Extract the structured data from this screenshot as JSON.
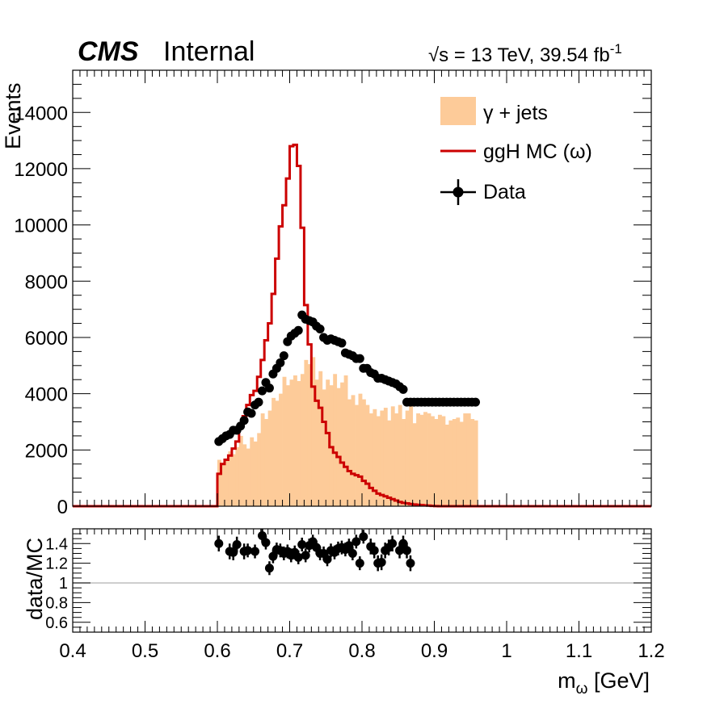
{
  "header": {
    "experiment": "CMS",
    "status": "Internal",
    "energy_lumi": "s = 13 TeV, 39.54 fb",
    "sqrt_symbol": "√",
    "lumi_exponent": "-1"
  },
  "chart_data": [
    {
      "type": "bar",
      "panel": "main",
      "ylabel": "Events",
      "xlim": [
        0.4,
        1.2
      ],
      "ylim": [
        0,
        15500
      ],
      "yticks": [
        "0",
        "2000",
        "4000",
        "6000",
        "8000",
        "10000",
        "12000",
        "14000"
      ],
      "ytick_values": [
        0,
        2000,
        4000,
        6000,
        8000,
        10000,
        12000,
        14000
      ],
      "bin_edges_start": 0.6,
      "bin_width": 0.005,
      "legend_position": "top-right",
      "series": [
        {
          "name": "γ + jets",
          "style": "filled-histogram",
          "color": "#fdcb99",
          "values": [
            1650,
            1550,
            1700,
            1950,
            1850,
            2100,
            2500,
            2200,
            2050,
            2450,
            2300,
            2600,
            3300,
            3100,
            3400,
            3850,
            3750,
            4000,
            4600,
            4300,
            4500,
            4650,
            4450,
            4700,
            5200,
            5050,
            5300,
            4500,
            4800,
            4150,
            4500,
            4300,
            4700,
            4200,
            4400,
            4650,
            3800,
            3950,
            3600,
            4000,
            3800,
            3600,
            3300,
            3450,
            3200,
            3400,
            3500,
            3050,
            3550,
            3300,
            3600,
            3100,
            3400,
            3600,
            2950,
            3300,
            3250,
            3350,
            3300,
            3200,
            3100,
            3250,
            3200,
            2900,
            3050,
            3100,
            3150,
            3000,
            3300,
            3300,
            3100,
            3050
          ]
        },
        {
          "name": "ggH MC (ω)",
          "style": "step-line",
          "color": "#cc0000",
          "values": [
            1150,
            1500,
            1650,
            1800,
            2050,
            2300,
            2900,
            3200,
            3600,
            3950,
            4100,
            4600,
            5200,
            5900,
            6500,
            7550,
            8800,
            9950,
            10700,
            11650,
            12800,
            12850,
            12100,
            9900,
            7150,
            5750,
            4250,
            3750,
            3500,
            3000,
            2600,
            2100,
            1900,
            1750,
            1550,
            1400,
            1250,
            1150,
            1100,
            1050,
            900,
            800,
            650,
            550,
            450,
            400,
            350,
            300,
            250,
            200,
            150,
            120,
            100,
            80,
            60,
            50,
            40,
            30,
            20,
            10,
            5,
            0,
            0,
            0,
            0,
            0,
            0,
            0,
            0,
            0,
            0,
            0
          ]
        },
        {
          "name": "Data",
          "style": "points",
          "color": "#000000",
          "x": [
            0.602,
            0.607,
            0.612,
            0.617,
            0.622,
            0.627,
            0.632,
            0.637,
            0.642,
            0.647,
            0.652,
            0.657,
            0.662,
            0.667,
            0.672,
            0.677,
            0.682,
            0.687,
            0.692,
            0.697,
            0.702,
            0.707,
            0.712,
            0.717,
            0.722,
            0.727,
            0.732,
            0.737,
            0.742,
            0.747,
            0.752,
            0.757,
            0.762,
            0.767,
            0.772,
            0.777,
            0.782,
            0.787,
            0.792,
            0.797,
            0.802,
            0.807,
            0.812,
            0.817,
            0.822,
            0.827,
            0.832,
            0.837,
            0.842,
            0.847,
            0.852,
            0.857,
            0.862,
            0.867,
            0.872,
            0.877,
            0.882,
            0.887,
            0.892,
            0.897,
            0.902,
            0.907,
            0.912,
            0.917,
            0.922,
            0.927,
            0.932,
            0.937,
            0.942,
            0.947,
            0.952,
            0.957
          ],
          "values": [
            2300,
            2400,
            2500,
            2550,
            2700,
            2700,
            2850,
            3050,
            3350,
            3300,
            3600,
            3700,
            4100,
            4400,
            4200,
            4700,
            4900,
            5100,
            5350,
            5850,
            6050,
            6150,
            6250,
            6800,
            6650,
            6600,
            6550,
            6400,
            6300,
            6000,
            5900,
            5950,
            5900,
            5850,
            5800,
            5450,
            5400,
            5350,
            5250,
            5250,
            4900,
            4900,
            4750,
            4700,
            4550,
            4550,
            4500,
            4450,
            4400,
            4350,
            4250,
            4150,
            3700,
            3700,
            3700,
            3700,
            3700,
            3700,
            3700,
            3700,
            3700,
            3700,
            3700,
            3700,
            3700,
            3700,
            3700,
            3700,
            3700,
            3700,
            3700,
            3700
          ]
        }
      ]
    },
    {
      "type": "scatter",
      "panel": "ratio",
      "ylabel": "data/MC",
      "xlabel": "m",
      "xlabel_sub": "ω",
      "xlabel_unit": " [GeV]",
      "xlim": [
        0.4,
        1.2
      ],
      "ylim": [
        0.5,
        1.55
      ],
      "xticks": [
        "0.4",
        "0.5",
        "0.6",
        "0.7",
        "0.8",
        "0.9",
        "1",
        "1.1",
        "1.2"
      ],
      "xtick_values": [
        0.4,
        0.5,
        0.6,
        0.7,
        0.8,
        0.9,
        1.0,
        1.1,
        1.2
      ],
      "yticks": [
        "0.6",
        "0.8",
        "1",
        "1.2",
        "1.4"
      ],
      "ytick_values": [
        0.6,
        0.8,
        1.0,
        1.2,
        1.4
      ],
      "reference_line": 1.0,
      "points": {
        "x": [
          0.602,
          0.617,
          0.622,
          0.627,
          0.637,
          0.642,
          0.652,
          0.662,
          0.667,
          0.672,
          0.677,
          0.682,
          0.687,
          0.692,
          0.697,
          0.702,
          0.707,
          0.712,
          0.717,
          0.722,
          0.727,
          0.732,
          0.737,
          0.742,
          0.747,
          0.752,
          0.757,
          0.762,
          0.767,
          0.772,
          0.777,
          0.782,
          0.787,
          0.792,
          0.797,
          0.802,
          0.812,
          0.817,
          0.822,
          0.827,
          0.832,
          0.837,
          0.842,
          0.852,
          0.857,
          0.862,
          0.867
        ],
        "values": [
          1.4,
          1.32,
          1.31,
          1.39,
          1.32,
          1.33,
          1.32,
          1.48,
          1.41,
          1.15,
          1.27,
          1.34,
          1.33,
          1.3,
          1.32,
          1.28,
          1.31,
          1.26,
          1.39,
          1.28,
          1.38,
          1.42,
          1.36,
          1.3,
          1.3,
          1.24,
          1.33,
          1.31,
          1.35,
          1.36,
          1.34,
          1.38,
          1.3,
          1.42,
          1.2,
          1.47,
          1.37,
          1.33,
          1.2,
          1.21,
          1.33,
          1.36,
          1.4,
          1.33,
          1.4,
          1.33,
          1.2
        ],
        "errors": [
          0.08,
          0.08,
          0.08,
          0.08,
          0.08,
          0.07,
          0.07,
          0.07,
          0.07,
          0.07,
          0.07,
          0.07,
          0.07,
          0.07,
          0.07,
          0.07,
          0.07,
          0.07,
          0.07,
          0.07,
          0.07,
          0.07,
          0.07,
          0.07,
          0.07,
          0.07,
          0.07,
          0.07,
          0.07,
          0.07,
          0.07,
          0.07,
          0.07,
          0.07,
          0.07,
          0.07,
          0.08,
          0.08,
          0.08,
          0.08,
          0.08,
          0.08,
          0.08,
          0.08,
          0.08,
          0.08,
          0.08
        ]
      }
    }
  ]
}
